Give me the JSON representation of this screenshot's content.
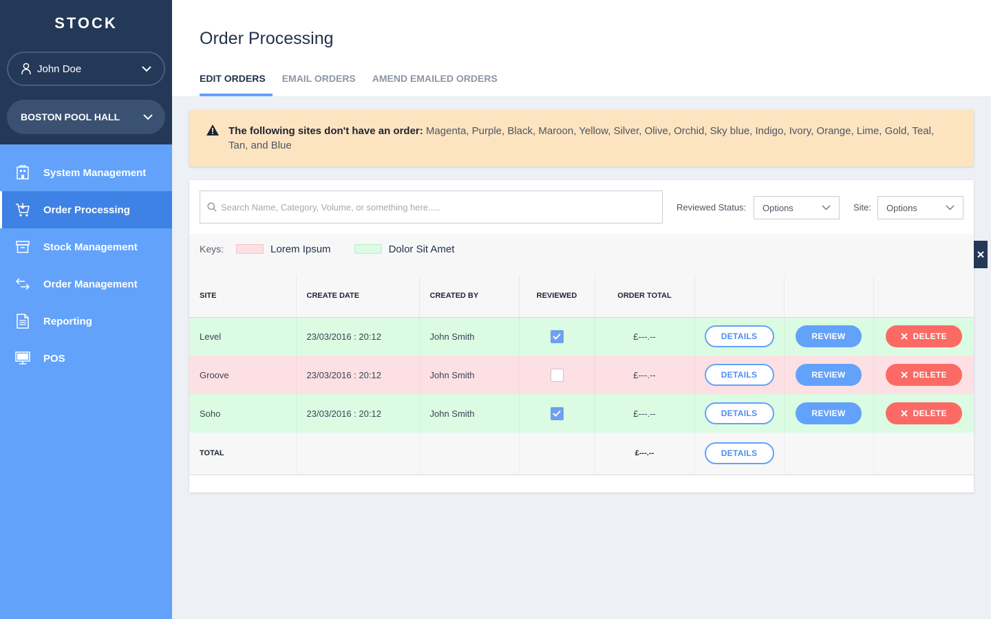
{
  "app": {
    "brand": "STOCK"
  },
  "user": {
    "name": "John Doe"
  },
  "venue": {
    "name": "BOSTON POOL HALL"
  },
  "nav": [
    {
      "label": "System Management",
      "icon": "building-icon"
    },
    {
      "label": "Order Processing",
      "icon": "cart-icon",
      "active": true
    },
    {
      "label": "Stock Management",
      "icon": "archive-box-icon"
    },
    {
      "label": "Order Management",
      "icon": "exchange-arrows-icon"
    },
    {
      "label": "Reporting",
      "icon": "document-icon"
    },
    {
      "label": "POS",
      "icon": "monitor-icon"
    }
  ],
  "page": {
    "title": "Order Processing"
  },
  "tabs": [
    {
      "label": "EDIT ORDERS",
      "active": true
    },
    {
      "label": "EMAIL ORDERS"
    },
    {
      "label": "AMEND EMAILED ORDERS"
    }
  ],
  "alert": {
    "bold": "The following sites don't have an order:",
    "text": " Magenta, Purple, Black, Maroon, Yellow, Silver, Olive, Orchid, Sky blue, Indigo, Ivory, Orange, Lime, Gold, Teal, Tan, and Blue"
  },
  "filters": {
    "search_placeholder": "Search Name, Category, Volume, or something here.....",
    "reviewed_label": "Reviewed Status:",
    "reviewed_value": "Options",
    "site_label": "Site:",
    "site_value": "Options"
  },
  "keys": {
    "label": "Keys:",
    "items": [
      {
        "text": "Lorem Ipsum",
        "color": "#fde0e4"
      },
      {
        "text": "Dolor Sit Amet",
        "color": "#dbfbe2"
      }
    ]
  },
  "table": {
    "headers": [
      "SITE",
      "CREATE DATE",
      "CREATED BY",
      "REVIEWED",
      "ORDER TOTAL",
      "",
      "",
      ""
    ],
    "rows": [
      {
        "site": "Level",
        "date": "23/03/2016 : 20:12",
        "by": "John Smith",
        "reviewed": true,
        "total": "£---.--"
      },
      {
        "site": "Groove",
        "date": "23/03/2016 : 20:12",
        "by": "John Smith",
        "reviewed": false,
        "total": "£---.--"
      },
      {
        "site": "Soho",
        "date": "23/03/2016 : 20:12",
        "by": "John Smith",
        "reviewed": true,
        "total": "£---.--"
      }
    ],
    "total_row": {
      "label": "TOTAL",
      "total": "£---.--"
    },
    "buttons": {
      "details": "DETAILS",
      "review": "REVIEW",
      "delete": "DELETE"
    }
  },
  "colors": {
    "sidebar": "#62a2fb",
    "sidebar_top": "#243957",
    "accent": "#62a2fb",
    "danger": "#fb6a64",
    "alert_bg": "#fde4c0"
  }
}
